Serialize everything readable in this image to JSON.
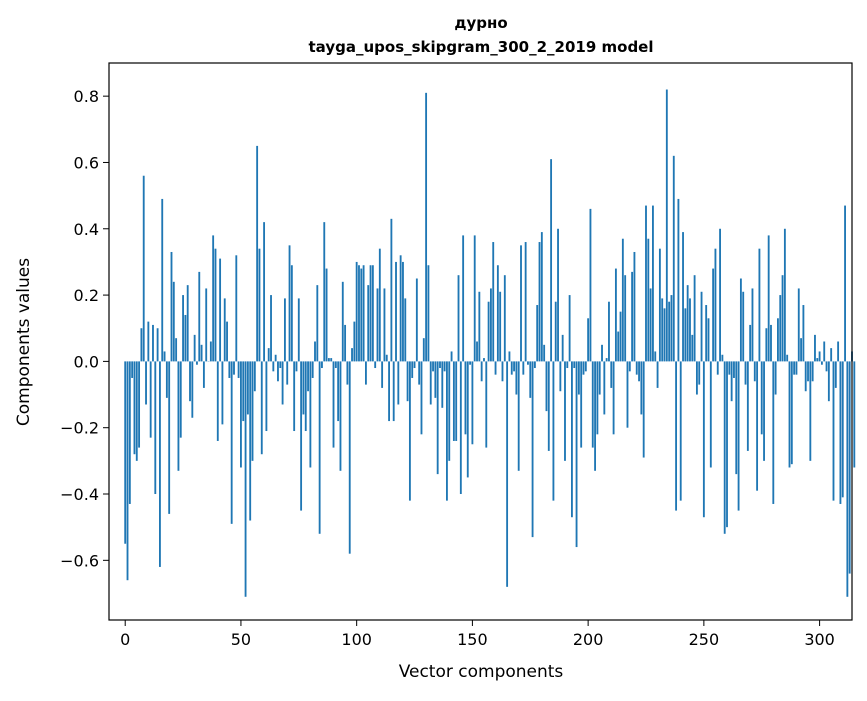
{
  "chart_data": {
    "type": "bar",
    "title_lines": [
      "дурно",
      "tayga_upos_skipgram_300_2_2019 model"
    ],
    "xlabel": "Vector components",
    "ylabel": "Components values",
    "xlim": [
      -7,
      314
    ],
    "ylim": [
      -0.78,
      0.9
    ],
    "xticks": [
      0,
      50,
      100,
      150,
      200,
      250,
      300
    ],
    "xtick_labels": [
      "0",
      "50",
      "100",
      "150",
      "200",
      "250",
      "300"
    ],
    "yticks": [
      -0.6,
      -0.4,
      -0.2,
      0.0,
      0.2,
      0.4,
      0.6,
      0.8
    ],
    "ytick_labels": [
      "−0.6",
      "−0.4",
      "−0.2",
      "0.0",
      "0.2",
      "0.4",
      "0.6",
      "0.8"
    ],
    "bar_color": "#1f77b4",
    "bar_width": 0.8,
    "grid": false,
    "values": [
      -0.55,
      -0.66,
      -0.43,
      -0.05,
      -0.28,
      -0.3,
      -0.26,
      0.1,
      0.56,
      -0.13,
      0.12,
      -0.23,
      0.11,
      -0.4,
      0.1,
      -0.62,
      0.49,
      0.03,
      -0.11,
      -0.46,
      0.33,
      0.24,
      0.07,
      -0.33,
      -0.23,
      0.2,
      0.14,
      0.23,
      -0.12,
      -0.17,
      0.08,
      -0.01,
      0.27,
      0.05,
      -0.08,
      0.22,
      0.0,
      0.06,
      0.38,
      0.34,
      -0.24,
      0.31,
      -0.19,
      0.19,
      0.12,
      -0.05,
      -0.49,
      -0.04,
      0.32,
      -0.05,
      -0.32,
      -0.18,
      -0.71,
      -0.16,
      -0.48,
      -0.3,
      -0.09,
      0.65,
      0.34,
      -0.28,
      0.42,
      -0.21,
      0.04,
      0.2,
      -0.03,
      0.02,
      -0.06,
      -0.02,
      -0.13,
      0.19,
      -0.07,
      0.35,
      0.29,
      -0.21,
      -0.03,
      0.19,
      -0.45,
      -0.16,
      -0.21,
      -0.09,
      -0.32,
      -0.05,
      0.06,
      0.23,
      -0.52,
      -0.02,
      0.42,
      0.28,
      0.01,
      0.01,
      -0.26,
      -0.02,
      -0.18,
      -0.33,
      0.24,
      0.11,
      -0.07,
      -0.58,
      0.04,
      0.12,
      0.3,
      0.29,
      0.28,
      0.29,
      -0.07,
      0.23,
      0.29,
      0.29,
      -0.02,
      0.22,
      0.34,
      -0.08,
      0.22,
      0.02,
      -0.18,
      0.43,
      -0.18,
      0.3,
      -0.13,
      0.32,
      0.3,
      0.19,
      -0.12,
      -0.42,
      -0.05,
      -0.02,
      0.25,
      -0.07,
      -0.22,
      0.07,
      0.81,
      0.29,
      -0.13,
      -0.03,
      -0.11,
      -0.34,
      -0.02,
      -0.14,
      -0.03,
      -0.42,
      -0.3,
      0.03,
      -0.24,
      -0.24,
      0.26,
      -0.4,
      0.38,
      -0.22,
      -0.35,
      -0.01,
      -0.25,
      0.38,
      0.06,
      0.21,
      -0.06,
      0.01,
      -0.26,
      0.18,
      0.22,
      0.36,
      -0.04,
      0.29,
      0.21,
      -0.06,
      0.26,
      -0.68,
      0.03,
      -0.04,
      -0.03,
      -0.1,
      -0.33,
      0.35,
      -0.04,
      0.36,
      -0.01,
      -0.11,
      -0.53,
      -0.02,
      0.17,
      0.36,
      0.39,
      0.05,
      -0.15,
      -0.27,
      0.61,
      -0.42,
      0.18,
      0.4,
      -0.09,
      0.08,
      -0.3,
      -0.02,
      0.2,
      -0.47,
      -0.02,
      -0.56,
      -0.1,
      -0.26,
      -0.04,
      -0.03,
      0.13,
      0.46,
      -0.26,
      -0.33,
      -0.22,
      -0.1,
      0.05,
      -0.16,
      0.01,
      0.18,
      -0.08,
      -0.22,
      0.28,
      0.09,
      0.15,
      0.37,
      0.26,
      -0.2,
      -0.03,
      0.27,
      0.33,
      -0.04,
      -0.06,
      -0.16,
      -0.29,
      0.47,
      0.37,
      0.22,
      0.47,
      0.03,
      -0.08,
      0.34,
      0.19,
      0.16,
      0.82,
      0.18,
      0.2,
      0.62,
      -0.45,
      0.49,
      -0.42,
      0.39,
      0.16,
      0.23,
      0.19,
      0.08,
      0.26,
      -0.1,
      -0.07,
      0.21,
      -0.47,
      0.17,
      0.13,
      -0.32,
      0.28,
      0.34,
      -0.04,
      0.4,
      0.02,
      -0.52,
      -0.5,
      -0.04,
      -0.12,
      -0.05,
      -0.34,
      -0.45,
      0.25,
      0.21,
      -0.07,
      -0.27,
      0.11,
      0.22,
      -0.06,
      -0.39,
      0.34,
      -0.22,
      -0.3,
      0.1,
      0.38,
      0.11,
      -0.43,
      -0.1,
      0.13,
      0.2,
      0.26,
      0.4,
      0.02,
      -0.32,
      -0.31,
      -0.04,
      -0.04,
      0.22,
      0.07,
      0.17,
      -0.09,
      -0.06,
      -0.3,
      -0.06,
      0.08,
      0.01,
      0.03,
      -0.01,
      0.06,
      -0.03,
      -0.12,
      0.04,
      -0.42,
      -0.08,
      0.06,
      -0.43,
      -0.41,
      0.47,
      -0.71,
      -0.64,
      0.03,
      -0.32
    ]
  }
}
